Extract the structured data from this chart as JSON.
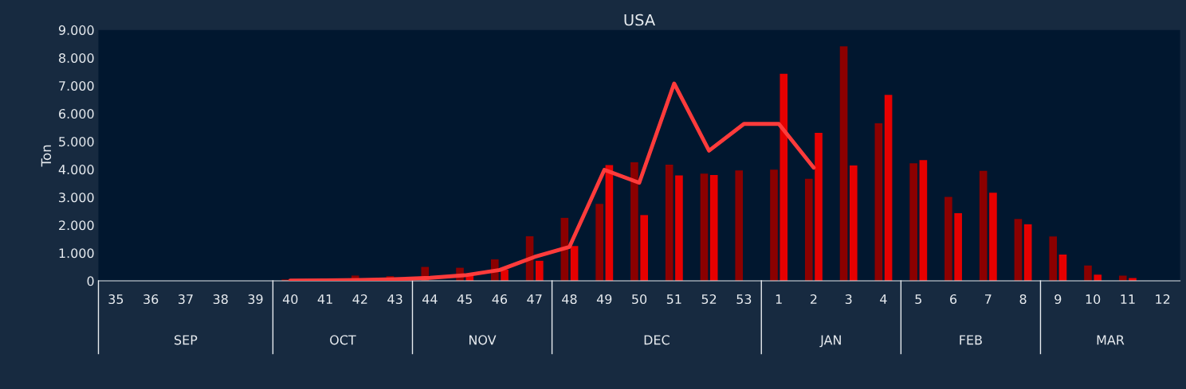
{
  "chart_data": {
    "type": "bar",
    "title": "USA",
    "ylabel": "Ton",
    "categories": [
      "35",
      "36",
      "37",
      "38",
      "39",
      "40",
      "41",
      "42",
      "43",
      "44",
      "45",
      "46",
      "47",
      "48",
      "49",
      "50",
      "51",
      "52",
      "53",
      "1",
      "2",
      "3",
      "4",
      "5",
      "6",
      "7",
      "8",
      "9",
      "10",
      "11",
      "12"
    ],
    "series": [
      {
        "color": "#8b0000",
        "values": [
          0,
          0,
          0,
          0,
          0,
          50,
          null,
          190,
          170,
          500,
          470,
          770,
          1600,
          2260,
          2760,
          4250,
          4170,
          3850,
          3960,
          3990,
          3660,
          8410,
          5650,
          4220,
          3010,
          3950,
          2220,
          1590,
          550,
          190,
          null
        ]
      },
      {
        "color": "#e60000",
        "values": [
          0,
          0,
          0,
          0,
          0,
          null,
          null,
          null,
          null,
          null,
          200,
          400,
          720,
          1250,
          4150,
          2360,
          3780,
          3800,
          null,
          7430,
          5310,
          4140,
          6670,
          4330,
          2430,
          3160,
          2030,
          940,
          220,
          100,
          null
        ]
      },
      {
        "type": "line",
        "color": "#ff3b3b",
        "values": [
          null,
          null,
          null,
          null,
          null,
          10,
          20,
          30,
          60,
          110,
          200,
          390,
          860,
          1220,
          3980,
          3520,
          7080,
          4670,
          5630,
          5630,
          4060,
          null,
          null,
          null,
          null,
          null,
          null,
          null,
          null,
          null,
          null
        ]
      }
    ],
    "ylim": [
      0,
      9000
    ],
    "yticks": [
      {
        "value": 0,
        "label": "0"
      },
      {
        "value": 1000,
        "label": "1.000"
      },
      {
        "value": 2000,
        "label": "2.000"
      },
      {
        "value": 3000,
        "label": "3.000"
      },
      {
        "value": 4000,
        "label": "4.000"
      },
      {
        "value": 5000,
        "label": "5.000"
      },
      {
        "value": 6000,
        "label": "6.000"
      },
      {
        "value": 7000,
        "label": "7.000"
      },
      {
        "value": 8000,
        "label": "8.000"
      },
      {
        "value": 9000,
        "label": "9.000"
      }
    ],
    "annotations": [
      "SEP",
      "OCT",
      "NOV",
      "DEC",
      "JAN",
      "FEB",
      "MAR"
    ],
    "grid": false,
    "legend": false
  }
}
